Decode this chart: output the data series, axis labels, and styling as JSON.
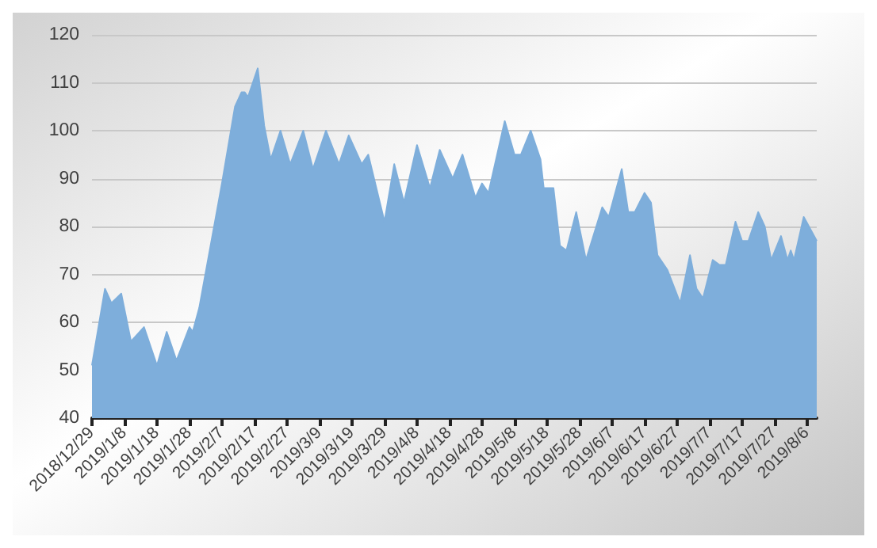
{
  "chart_data": {
    "type": "area",
    "color": "#7eaedb",
    "marker": "none",
    "grid": "y",
    "x": [
      "2018-12-29",
      "2019-01-02",
      "2019-01-04",
      "2019-01-07",
      "2019-01-10",
      "2019-01-14",
      "2019-01-18",
      "2019-01-21",
      "2019-01-24",
      "2019-01-28",
      "2019-01-29",
      "2019-01-31",
      "2019-02-07",
      "2019-02-11",
      "2019-02-13",
      "2019-02-14",
      "2019-02-15",
      "2019-02-18",
      "2019-02-20",
      "2019-02-22",
      "2019-02-25",
      "2019-02-28",
      "2019-03-04",
      "2019-03-07",
      "2019-03-11",
      "2019-03-15",
      "2019-03-18",
      "2019-03-22",
      "2019-03-24",
      "2019-03-29",
      "2019-04-01",
      "2019-04-04",
      "2019-04-08",
      "2019-04-12",
      "2019-04-15",
      "2019-04-19",
      "2019-04-22",
      "2019-04-26",
      "2019-04-28",
      "2019-04-30",
      "2019-05-05",
      "2019-05-08",
      "2019-05-10",
      "2019-05-13",
      "2019-05-16",
      "2019-05-17",
      "2019-05-20",
      "2019-05-22",
      "2019-05-24",
      "2019-05-27",
      "2019-05-30",
      "2019-06-04",
      "2019-06-06",
      "2019-06-10",
      "2019-06-12",
      "2019-06-14",
      "2019-06-17",
      "2019-06-19",
      "2019-06-21",
      "2019-06-24",
      "2019-06-28",
      "2019-07-01",
      "2019-07-03",
      "2019-07-05",
      "2019-07-08",
      "2019-07-10",
      "2019-07-12",
      "2019-07-15",
      "2019-07-17",
      "2019-07-19",
      "2019-07-22",
      "2019-07-24",
      "2019-07-26",
      "2019-07-29",
      "2019-07-31",
      "2019-08-01",
      "2019-08-02",
      "2019-08-05",
      "2019-08-09"
    ],
    "values": [
      51,
      67,
      64,
      66,
      56,
      59,
      51,
      58,
      52,
      59,
      58,
      63,
      89,
      105,
      108,
      108,
      107,
      113,
      101,
      94,
      100,
      93,
      100,
      92,
      100,
      93,
      99,
      93,
      95,
      81,
      93,
      85,
      97,
      88,
      96,
      90,
      95,
      86,
      89,
      87,
      102,
      95,
      95,
      100,
      94,
      88,
      88,
      76,
      75,
      83,
      73,
      84,
      82,
      92,
      83,
      83,
      87,
      85,
      74,
      71,
      64,
      74,
      67,
      65,
      73,
      72,
      72,
      81,
      77,
      77,
      83,
      80,
      73,
      78,
      73,
      75,
      73,
      82,
      77
    ],
    "xlim": [
      "2018-12-29",
      "2019-08-09"
    ],
    "xticks": [
      {
        "value": "2018-12-29",
        "label": "2018/12/29"
      },
      {
        "value": "2019-01-08",
        "label": "2019/1/8"
      },
      {
        "value": "2019-01-18",
        "label": "2019/1/18"
      },
      {
        "value": "2019-01-28",
        "label": "2019/1/28"
      },
      {
        "value": "2019-02-07",
        "label": "2019/2/7"
      },
      {
        "value": "2019-02-17",
        "label": "2019/2/17"
      },
      {
        "value": "2019-02-27",
        "label": "2019/2/27"
      },
      {
        "value": "2019-03-09",
        "label": "2019/3/9"
      },
      {
        "value": "2019-03-19",
        "label": "2019/3/19"
      },
      {
        "value": "2019-03-29",
        "label": "2019/3/29"
      },
      {
        "value": "2019-04-08",
        "label": "2019/4/8"
      },
      {
        "value": "2019-04-18",
        "label": "2019/4/18"
      },
      {
        "value": "2019-04-28",
        "label": "2019/4/28"
      },
      {
        "value": "2019-05-08",
        "label": "2019/5/8"
      },
      {
        "value": "2019-05-18",
        "label": "2019/5/18"
      },
      {
        "value": "2019-05-28",
        "label": "2019/5/28"
      },
      {
        "value": "2019-06-07",
        "label": "2019/6/7"
      },
      {
        "value": "2019-06-17",
        "label": "2019/6/17"
      },
      {
        "value": "2019-06-27",
        "label": "2019/6/27"
      },
      {
        "value": "2019-07-07",
        "label": "2019/7/7"
      },
      {
        "value": "2019-07-17",
        "label": "2019/7/17"
      },
      {
        "value": "2019-07-27",
        "label": "2019/7/27"
      },
      {
        "value": "2019-08-06",
        "label": "2019/8/6"
      }
    ],
    "ylim": [
      40,
      120
    ],
    "yticks": [
      40,
      50,
      60,
      70,
      80,
      90,
      100,
      110,
      120
    ]
  }
}
